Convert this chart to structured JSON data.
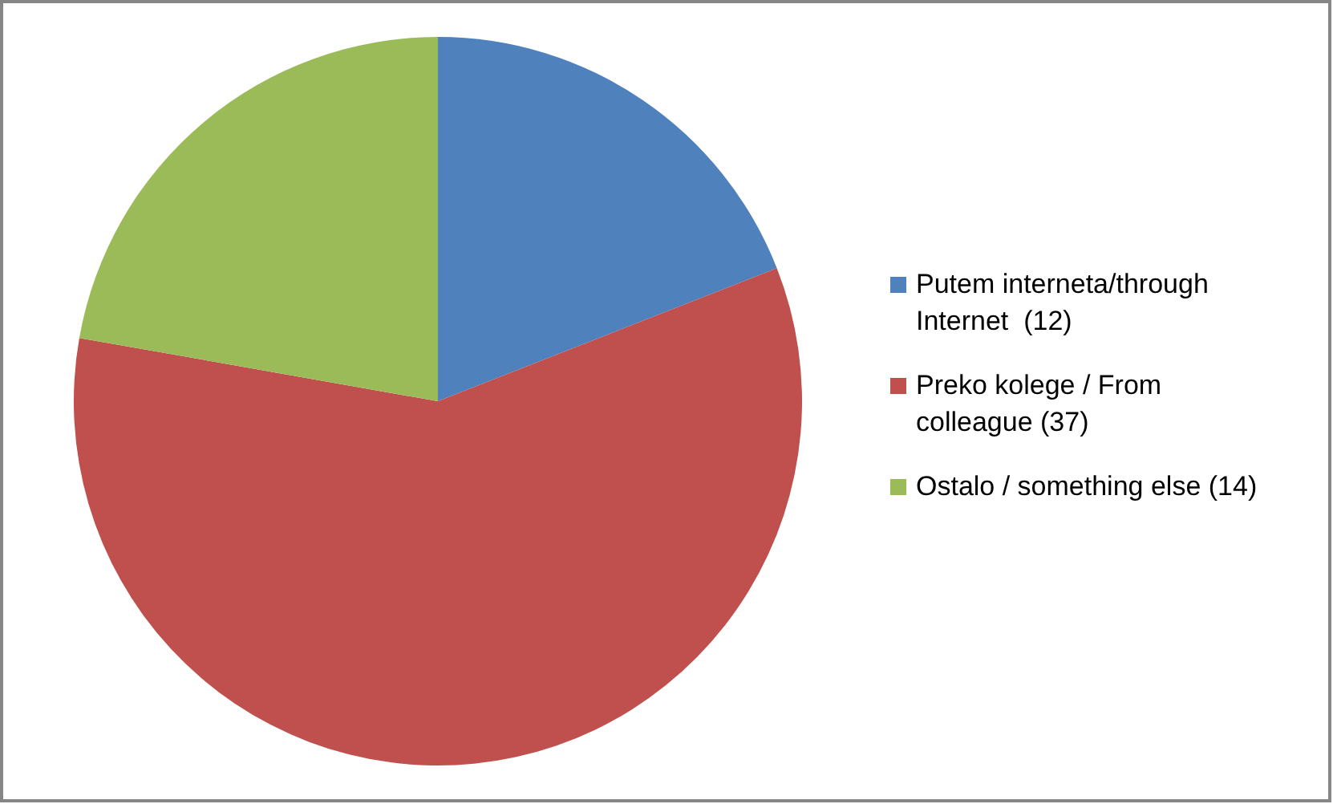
{
  "chart_data": {
    "type": "pie",
    "categories": [
      "Putem interneta/through Internet  (12)",
      "Preko kolege / From colleague (37)",
      "Ostalo / something else (14)"
    ],
    "values": [
      12,
      37,
      14
    ],
    "colors": [
      "#4f81bd",
      "#c0504d",
      "#9bbb59"
    ],
    "legend": "right"
  }
}
